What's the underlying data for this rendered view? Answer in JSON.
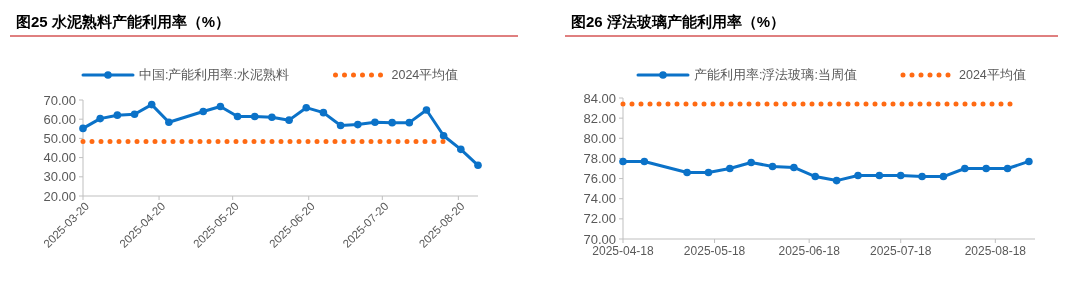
{
  "chart_data": [
    {
      "type": "line",
      "title": "图25 水泥熟料产能利用率（%）",
      "legend": "top",
      "grid": false,
      "marker": "circle",
      "xlim": [
        "2025-03-20",
        "2025-08-28"
      ],
      "xticks": [
        {
          "value": "2025-03-20",
          "label": "2025-03-20"
        },
        {
          "value": "2025-04-20",
          "label": "2025-04-20"
        },
        {
          "value": "2025-05-20",
          "label": "2025-05-20"
        },
        {
          "value": "2025-06-20",
          "label": "2025-06-20"
        },
        {
          "value": "2025-07-20",
          "label": "2025-07-20"
        },
        {
          "value": "2025-08-20",
          "label": "2025-08-20"
        }
      ],
      "ylim": [
        20,
        70
      ],
      "yticks": [
        {
          "value": 20,
          "label": "20.00"
        },
        {
          "value": 30,
          "label": "30.00"
        },
        {
          "value": 40,
          "label": "40.00"
        },
        {
          "value": 50,
          "label": "50.00"
        },
        {
          "value": 60,
          "label": "60.00"
        },
        {
          "value": 70,
          "label": "70.00"
        }
      ],
      "series": [
        {
          "name": "中国:产能利用率:水泥熟料",
          "color": "#0b72c8",
          "x": [
            "2025-03-20",
            "2025-03-27",
            "2025-04-03",
            "2025-04-10",
            "2025-04-17",
            "2025-04-24",
            "2025-05-08",
            "2025-05-15",
            "2025-05-22",
            "2025-05-29",
            "2025-06-05",
            "2025-06-12",
            "2025-06-19",
            "2025-06-26",
            "2025-07-03",
            "2025-07-10",
            "2025-07-17",
            "2025-07-24",
            "2025-07-31",
            "2025-08-07",
            "2025-08-14",
            "2025-08-21",
            "2025-08-28"
          ],
          "values": [
            55.2,
            60.3,
            62.1,
            62.6,
            67.6,
            58.4,
            64.0,
            66.6,
            61.4,
            61.4,
            61.0,
            59.5,
            66.0,
            63.4,
            56.7,
            57.2,
            58.4,
            58.2,
            58.2,
            64.8,
            51.4,
            44.3,
            36.0
          ]
        },
        {
          "name": "2024平均值",
          "color": "#ff6a13",
          "line_style": "dotted",
          "marker": "none",
          "x": [
            "2025-03-20",
            "2025-08-14"
          ],
          "values": [
            48.4,
            48.4
          ]
        }
      ]
    },
    {
      "type": "line",
      "title": "图26 浮法玻璃产能利用率（%）",
      "legend": "top",
      "grid": false,
      "marker": "circle",
      "xlim": [
        "2025-04-18",
        "2025-08-31"
      ],
      "xticks": [
        {
          "value": "2025-04-18",
          "label": "2025-04-18"
        },
        {
          "value": "2025-05-18",
          "label": "2025-05-18"
        },
        {
          "value": "2025-06-18",
          "label": "2025-06-18"
        },
        {
          "value": "2025-07-18",
          "label": "2025-07-18"
        },
        {
          "value": "2025-08-18",
          "label": "2025-08-18"
        }
      ],
      "ylim": [
        70,
        84
      ],
      "yticks": [
        {
          "value": 70,
          "label": "70.00"
        },
        {
          "value": 72,
          "label": "72.00"
        },
        {
          "value": 74,
          "label": "74.00"
        },
        {
          "value": 76,
          "label": "76.00"
        },
        {
          "value": 78,
          "label": "78.00"
        },
        {
          "value": 80,
          "label": "80.00"
        },
        {
          "value": 82,
          "label": "82.00"
        },
        {
          "value": 84,
          "label": "84.00"
        }
      ],
      "series": [
        {
          "name": "产能利用率:浮法玻璃:当周值",
          "color": "#0b72c8",
          "x": [
            "2025-04-18",
            "2025-04-25",
            "2025-05-09",
            "2025-05-16",
            "2025-05-23",
            "2025-05-30",
            "2025-06-06",
            "2025-06-13",
            "2025-06-20",
            "2025-06-27",
            "2025-07-04",
            "2025-07-11",
            "2025-07-18",
            "2025-07-25",
            "2025-08-01",
            "2025-08-08",
            "2025-08-15",
            "2025-08-22",
            "2025-08-29"
          ],
          "values": [
            77.7,
            77.7,
            76.6,
            76.6,
            77.0,
            77.6,
            77.2,
            77.1,
            76.2,
            75.8,
            76.3,
            76.3,
            76.3,
            76.2,
            76.2,
            77.0,
            77.0,
            77.0,
            77.7
          ]
        },
        {
          "name": "2024平均值",
          "color": "#ff6a13",
          "line_style": "dotted",
          "marker": "none",
          "x": [
            "2025-04-18",
            "2025-08-25"
          ],
          "values": [
            83.4,
            83.4
          ]
        }
      ]
    }
  ]
}
